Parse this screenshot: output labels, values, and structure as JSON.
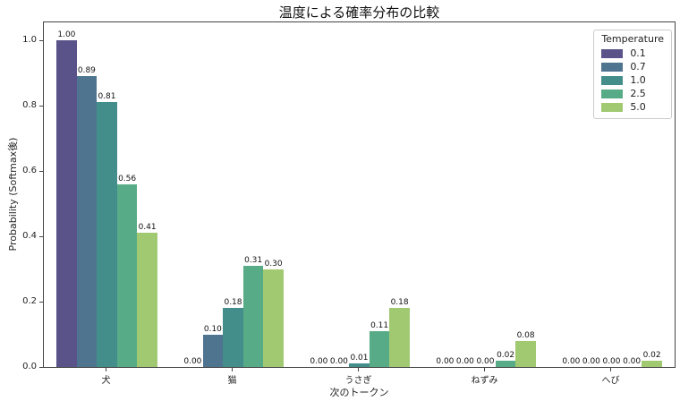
{
  "chart_data": {
    "type": "bar",
    "title": "温度による確率分布の比較",
    "xlabel": "次のトークン",
    "ylabel": "Probability (Softmax後)",
    "categories": [
      "犬",
      "猫",
      "うさぎ",
      "ねずみ",
      "へび"
    ],
    "series": [
      {
        "name": "0.1",
        "color": "#5a5389",
        "values": [
          1.0,
          0.0,
          0.0,
          0.0,
          0.0
        ]
      },
      {
        "name": "0.7",
        "color": "#4e7490",
        "values": [
          0.89,
          0.1,
          0.0,
          0.0,
          0.0
        ]
      },
      {
        "name": "1.0",
        "color": "#438d8a",
        "values": [
          0.81,
          0.18,
          0.01,
          0.0,
          0.0
        ]
      },
      {
        "name": "2.5",
        "color": "#57ab86",
        "values": [
          0.56,
          0.31,
          0.11,
          0.02,
          0.0
        ]
      },
      {
        "name": "5.0",
        "color": "#a1c972",
        "values": [
          0.41,
          0.3,
          0.18,
          0.08,
          0.02
        ]
      }
    ],
    "bar_label_decimals": 2,
    "y_ticks": [
      "0.0",
      "0.2",
      "0.4",
      "0.6",
      "0.8",
      "1.0"
    ],
    "ylim": [
      0,
      1.055
    ],
    "grid": false,
    "legend": {
      "title": "Temperature",
      "position": "upper right",
      "entries": [
        "0.1",
        "0.7",
        "1.0",
        "2.5",
        "5.0"
      ]
    },
    "colors": {
      "spine": "#444444",
      "legend_border": "#cccccc",
      "text": "#222222"
    }
  }
}
